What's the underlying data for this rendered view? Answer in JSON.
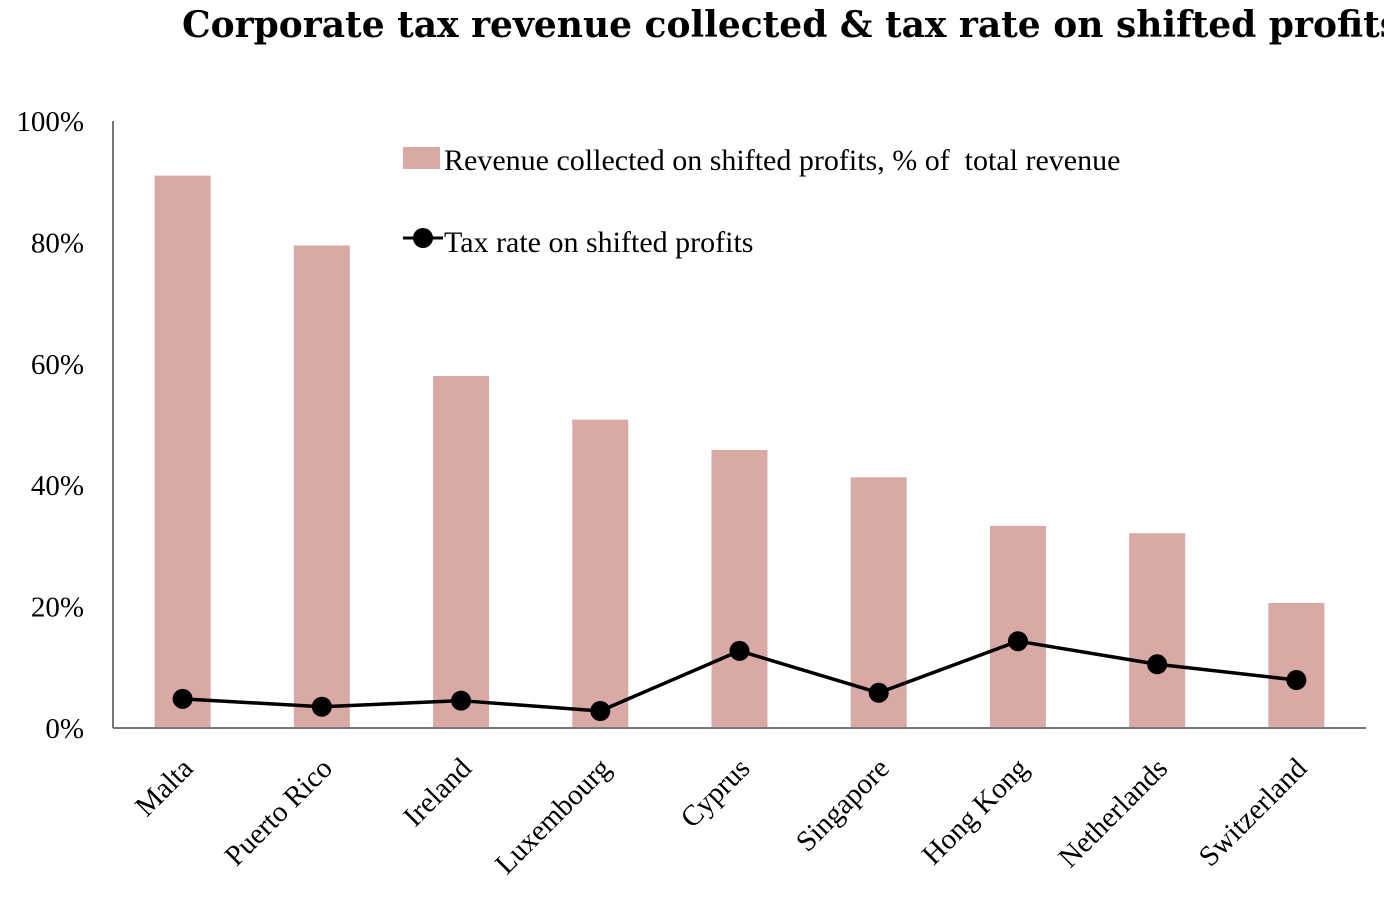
{
  "chart_data": {
    "type": "bar",
    "title": "Corporate tax revenue collected & tax rate on shifted profits",
    "xlabel": "",
    "ylabel": "",
    "ylim": [
      0,
      100
    ],
    "yticks": [
      0,
      20,
      40,
      60,
      80,
      100
    ],
    "ytick_labels": [
      "0%",
      "20%",
      "40%",
      "60%",
      "80%",
      "100%"
    ],
    "categories": [
      "Malta",
      "Puerto Rico",
      "Ireland",
      "Luxembourg",
      "Cyprus",
      "Singapore",
      "Hong Kong",
      "Netherlands",
      "Switzerland"
    ],
    "series": [
      {
        "name": "Revenue collected on shifted profits, % of  total revenue",
        "type": "bar",
        "color": "#d9a9a6",
        "values": [
          91,
          79.5,
          58,
          50.8,
          45.8,
          41.3,
          33.3,
          32.1,
          20.6
        ]
      },
      {
        "name": "Tax rate on shifted profits",
        "type": "line",
        "color": "#000000",
        "values": [
          4.8,
          3.5,
          4.5,
          2.8,
          12.7,
          5.8,
          14.3,
          10.5,
          7.9
        ]
      }
    ],
    "legend_position": "top-center",
    "grid": false
  }
}
